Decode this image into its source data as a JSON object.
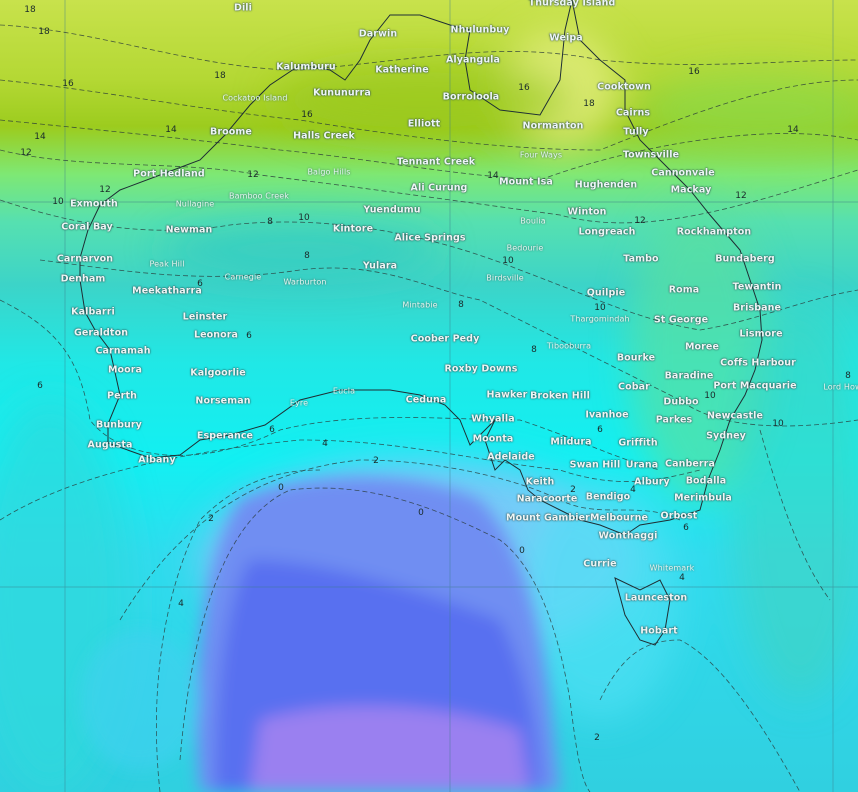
{
  "map": {
    "variable_colors": {
      "warm_high": "#cfe84e",
      "warm": "#9ccc1e",
      "mild": "#78f098",
      "teal": "#3cd6c6",
      "cyan": "#10f0f4",
      "light_blue": "#7cc8f8",
      "blue": "#5a74f2",
      "purple": "#a07ef0"
    },
    "cities": [
      "Dili",
      "Thursday Island",
      "Darwin",
      "Nhulunbuy",
      "Weipa",
      "Kalumburu",
      "Katherine",
      "Alyangula",
      "Kununurra",
      "Borroloola",
      "Cooktown",
      "Cockatoo Island",
      "Broome",
      "Halls Creek",
      "Elliott",
      "Normanton",
      "Cairns",
      "Tully",
      "Four Ways",
      "Tennant Creek",
      "Townsville",
      "Balgo Hills",
      "Port Hedland",
      "Mount Isa",
      "Hughenden",
      "Cannonvale",
      "Ali Curung",
      "Mackay",
      "Exmouth",
      "Bamboo Creek",
      "Nullagine",
      "Yuendumu",
      "Winton",
      "Coral Bay",
      "Newman",
      "Kintore",
      "Boulia",
      "Longreach",
      "Rockhampton",
      "Alice Springs",
      "Bedourie",
      "Tambo",
      "Carnarvon",
      "Peak Hill",
      "Yulara",
      "Bundaberg",
      "Denham",
      "Carnegie",
      "Warburton",
      "Birdsville",
      "Quilpie",
      "Roma",
      "Tewantin",
      "Meekatharra",
      "Mintabie",
      "Brisbane",
      "Thargomindah",
      "St George",
      "Kalbarri",
      "Leinster",
      "Geraldton",
      "Leonora",
      "Lismore",
      "Coober Pedy",
      "Tibooburra",
      "Moree",
      "Bourke",
      "Carnamah",
      "Coffs Harbour",
      "Roxby Downs",
      "Moora",
      "Kalgoorlie",
      "Baradine",
      "Port Macquarie",
      "Lord Howe",
      "Cobar",
      "Eucla",
      "Hawker",
      "Broken Hill",
      "Ceduna",
      "Perth",
      "Dubbo",
      "Norseman",
      "Eyre",
      "Newcastle",
      "Ivanhoe",
      "Whyalla",
      "Parkes",
      "Bunbury",
      "Moonta",
      "Sydney",
      "Esperance",
      "Mildura",
      "Griffith",
      "Augusta",
      "Adelaide",
      "Albany",
      "Swan Hill",
      "Urana",
      "Canberra",
      "Keith",
      "Albury",
      "Bodalla",
      "Naracoorte",
      "Bendigo",
      "Merimbula",
      "Mount Gambier",
      "Melbourne",
      "Orbost",
      "Wonthaggi",
      "Currie",
      "Whitemark",
      "Launceston",
      "Hobart"
    ],
    "contour_labels": [
      "18",
      "18",
      "18",
      "16",
      "16",
      "14",
      "14",
      "12",
      "12",
      "10",
      "10",
      "8",
      "8",
      "6",
      "6",
      "6",
      "6",
      "4",
      "2",
      "0",
      "0",
      "2",
      "4",
      "12",
      "14",
      "16",
      "18",
      "16",
      "14",
      "12",
      "12",
      "10",
      "10",
      "8",
      "8",
      "10",
      "10",
      "6",
      "4",
      "2",
      "0",
      "2",
      "4",
      "6",
      "8"
    ]
  }
}
